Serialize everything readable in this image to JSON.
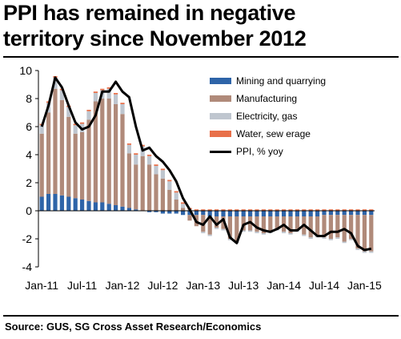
{
  "title_line1": "PPI has remained in negative",
  "title_line2": "territory since November 2012",
  "source": "Source: GUS, SG Cross Asset Research/Economics",
  "colors": {
    "mining": "#2E64A8",
    "manufacturing": "#B08A7A",
    "electricity": "#BFC6CF",
    "water": "#E8704A",
    "ppi": "#000000"
  },
  "chart_data": {
    "type": "bar",
    "stacked": true,
    "ylim": [
      -4,
      10
    ],
    "yticks": [
      -4,
      -2,
      0,
      2,
      4,
      6,
      8,
      10
    ],
    "xtick_labels": [
      "Jan-11",
      "Jul-11",
      "Jan-12",
      "Jul-12",
      "Jan-13",
      "Jul-13",
      "Jan-14",
      "Jul-14",
      "Jan-15"
    ],
    "xtick_month_index": [
      0,
      6,
      12,
      18,
      24,
      30,
      36,
      42,
      48
    ],
    "months_count": 50,
    "legend_position": "top-right",
    "series": [
      {
        "name": "Mining and quarrying",
        "key": "mining",
        "values": [
          1.0,
          1.2,
          1.2,
          1.1,
          1.0,
          0.9,
          0.8,
          0.7,
          0.6,
          0.6,
          0.5,
          0.4,
          0.3,
          0.2,
          0.1,
          0.0,
          -0.1,
          -0.1,
          -0.2,
          -0.2,
          -0.2,
          -0.3,
          -0.3,
          -0.3,
          -0.3,
          -0.4,
          -0.4,
          -0.4,
          -0.4,
          -0.4,
          -0.4,
          -0.4,
          -0.4,
          -0.4,
          -0.4,
          -0.4,
          -0.4,
          -0.4,
          -0.4,
          -0.4,
          -0.4,
          -0.4,
          -0.3,
          -0.3,
          -0.3,
          -0.3,
          -0.3,
          -0.3,
          -0.3,
          -0.3
        ]
      },
      {
        "name": "Manufacturing",
        "key": "manufacturing",
        "values": [
          4.5,
          5.8,
          7.5,
          6.8,
          5.7,
          4.6,
          4.8,
          5.8,
          7.2,
          7.4,
          7.5,
          7.2,
          6.6,
          3.9,
          3.2,
          3.9,
          3.3,
          2.6,
          2.3,
          1.5,
          0.8,
          0.2,
          -0.4,
          -0.8,
          -1.2,
          -1.3,
          -0.8,
          -0.9,
          -1.6,
          -1.8,
          -1.0,
          -1.0,
          -1.1,
          -1.2,
          -1.1,
          -0.9,
          -1.1,
          -1.2,
          -1.0,
          -1.3,
          -1.5,
          -1.4,
          -1.6,
          -1.7,
          -1.6,
          -1.9,
          -1.7,
          -2.4,
          -2.6,
          -2.6
        ]
      },
      {
        "name": "Electricity, gas",
        "key": "electricity",
        "values": [
          0.6,
          0.7,
          0.8,
          0.7,
          0.7,
          0.6,
          0.6,
          0.6,
          0.6,
          0.6,
          0.7,
          0.7,
          0.7,
          0.6,
          0.7,
          0.7,
          0.6,
          0.6,
          0.6,
          0.6,
          0.5,
          0.3,
          0.1,
          0.0,
          -0.1,
          -0.1,
          -0.1,
          -0.1,
          -0.1,
          -0.1,
          -0.1,
          -0.1,
          -0.1,
          -0.1,
          -0.1,
          -0.1,
          -0.1,
          -0.1,
          -0.1,
          -0.1,
          -0.1,
          -0.1,
          -0.1,
          -0.1,
          -0.1,
          -0.1,
          -0.1,
          -0.1,
          -0.1,
          -0.1
        ]
      },
      {
        "name": "Water, sew erage",
        "key": "water",
        "values": [
          0.1,
          0.1,
          0.1,
          0.1,
          0.1,
          0.1,
          0.1,
          0.1,
          0.1,
          0.1,
          0.1,
          0.1,
          0.1,
          0.1,
          0.1,
          0.1,
          0.1,
          0.1,
          0.1,
          0.1,
          0.1,
          0.1,
          0.1,
          0.1,
          0.1,
          0.1,
          0.1,
          0.1,
          0.1,
          0.1,
          0.1,
          0.1,
          0.1,
          0.1,
          0.1,
          0.1,
          0.1,
          0.1,
          0.1,
          0.1,
          0.1,
          0.1,
          0.1,
          0.1,
          0.1,
          0.1,
          0.1,
          0.1,
          0.1,
          0.1
        ]
      }
    ],
    "line": {
      "name": "PPI, % yoy",
      "key": "ppi",
      "values": [
        6.0,
        7.5,
        9.5,
        8.8,
        7.5,
        6.3,
        5.8,
        6.0,
        6.8,
        8.5,
        8.5,
        9.2,
        8.5,
        8.1,
        6.0,
        4.3,
        4.5,
        3.9,
        3.5,
        2.9,
        2.1,
        0.9,
        0.1,
        -0.8,
        -1.0,
        -0.4,
        -1.0,
        -0.6,
        -1.9,
        -2.3,
        -1.0,
        -0.8,
        -1.2,
        -1.4,
        -1.5,
        -1.3,
        -1.0,
        -1.4,
        -1.4,
        -1.0,
        -1.4,
        -1.8,
        -1.8,
        -1.5,
        -1.5,
        -1.3,
        -1.6,
        -2.5,
        -2.8,
        -2.7
      ]
    }
  }
}
